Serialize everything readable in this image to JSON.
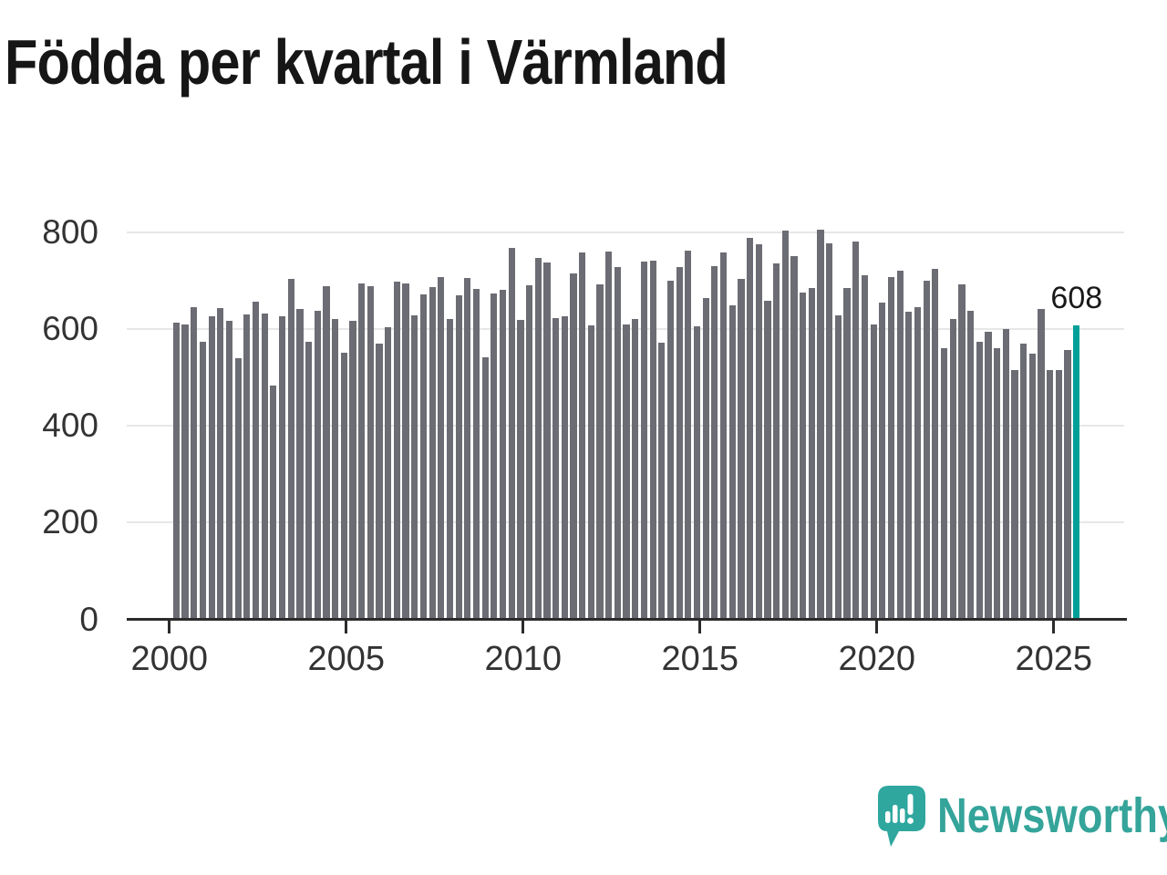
{
  "title": "Födda per kvartal i Värmland",
  "chart_data": {
    "type": "bar",
    "title": "Födda per kvartal i Värmland",
    "series_name": "Födda per kvartal",
    "frequency": "quarterly",
    "x_start": "2000-Q1",
    "x_end": "2025-Q3",
    "values": [
      612,
      609,
      645,
      574,
      626,
      643,
      617,
      539,
      630,
      656,
      631,
      483,
      625,
      703,
      641,
      574,
      637,
      688,
      620,
      551,
      617,
      693,
      688,
      569,
      604,
      698,
      694,
      628,
      672,
      686,
      706,
      620,
      670,
      705,
      682,
      542,
      673,
      680,
      767,
      619,
      690,
      746,
      737,
      622,
      625,
      714,
      758,
      608,
      692,
      760,
      728,
      609,
      620,
      739,
      740,
      571,
      699,
      727,
      761,
      606,
      663,
      730,
      758,
      648,
      704,
      788,
      774,
      658,
      735,
      803,
      750,
      675,
      684,
      805,
      776,
      628,
      685,
      781,
      711,
      609,
      654,
      706,
      720,
      636,
      645,
      699,
      724,
      560,
      621,
      692,
      638,
      574,
      593,
      560,
      599,
      515,
      570,
      549,
      641,
      515,
      515,
      556,
      608
    ],
    "x_tick_labels": [
      "2000",
      "2005",
      "2010",
      "2015",
      "2020",
      "2025"
    ],
    "x_tick_years": [
      2000,
      2005,
      2010,
      2015,
      2020,
      2025
    ],
    "y_tick_labels": [
      "0",
      "200",
      "400",
      "600",
      "800"
    ],
    "y_tick_values": [
      0,
      200,
      400,
      600,
      800
    ],
    "ylim": [
      0,
      800
    ],
    "grid": "horizontal",
    "legend": "none",
    "bar_color": "#6c6c74",
    "highlight_color": "#00a099",
    "highlight_index": 102,
    "highlight_label": "608"
  },
  "footer": {
    "brand": "Newsworthy",
    "brand_color": "#35a49a",
    "logo_icon": "newsworthy-speech-bubble-chart-icon"
  }
}
